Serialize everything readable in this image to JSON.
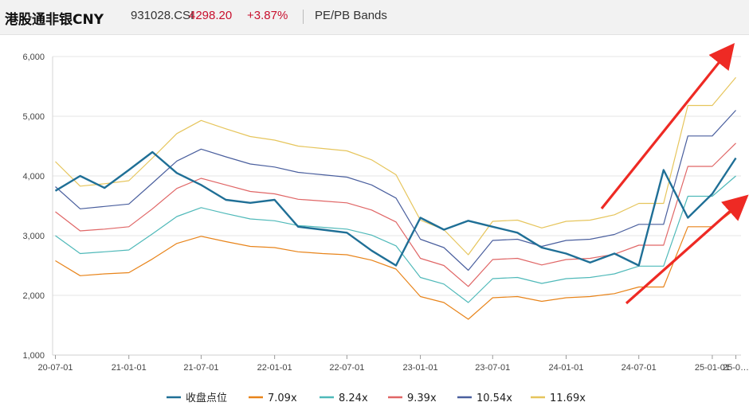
{
  "header": {
    "name": "港股通非银CNY",
    "code": "931028.CSI",
    "price": "4298.20",
    "change": "+3.87%",
    "chart_label": "PE/PB Bands"
  },
  "chart_data": {
    "type": "line",
    "title": "",
    "xlabel": "",
    "ylabel": "",
    "ylim": [
      1000,
      6000
    ],
    "xlim": [
      "2020-06-24",
      "2025-03-14"
    ],
    "yticks": [
      "1,000",
      "2,000",
      "3,000",
      "4,000",
      "5,000",
      "6,000"
    ],
    "xticks": [
      {
        "label": "20-07-01",
        "date": "2020-07-01"
      },
      {
        "label": "21-01-01",
        "date": "2021-01-01"
      },
      {
        "label": "21-07-01",
        "date": "2021-07-01"
      },
      {
        "label": "22-01-01",
        "date": "2022-01-01"
      },
      {
        "label": "22-07-01",
        "date": "2022-07-01"
      },
      {
        "label": "23-01-01",
        "date": "2023-01-01"
      },
      {
        "label": "23-07-01",
        "date": "2023-07-01"
      },
      {
        "label": "24-01-01",
        "date": "2024-01-01"
      },
      {
        "label": "24-07-01",
        "date": "2024-07-01"
      },
      {
        "label": "25-01-01",
        "date": "2025-01-01"
      },
      {
        "label": "25-0…",
        "date": "2025-03-01"
      }
    ],
    "grid": "horizontal",
    "legend_position": "bottom",
    "dates": [
      "2020-07",
      "2020-09",
      "2020-11",
      "2021-01",
      "2021-03",
      "2021-05",
      "2021-07",
      "2021-09",
      "2021-11",
      "2022-01",
      "2022-03",
      "2022-05",
      "2022-07",
      "2022-09",
      "2022-11",
      "2023-01",
      "2023-03",
      "2023-05",
      "2023-07",
      "2023-09",
      "2023-11",
      "2024-01",
      "2024-03",
      "2024-05",
      "2024-07",
      "2024-09",
      "2024-11",
      "2025-01",
      "2025-03"
    ],
    "series": [
      {
        "name": "收盘点位",
        "color": "#1f6f96",
        "width": 2.4,
        "values": [
          3750,
          4000,
          3800,
          4100,
          4400,
          4050,
          3850,
          3600,
          3550,
          3600,
          3150,
          3100,
          3050,
          2750,
          2500,
          3300,
          3100,
          3250,
          3150,
          3050,
          2800,
          2700,
          2550,
          2700,
          2500,
          4100,
          3300,
          3700,
          4300
        ]
      },
      {
        "name": "7.09x",
        "color": "#e8841a",
        "width": 1.2,
        "values": [
          2580,
          2330,
          2360,
          2380,
          2610,
          2870,
          2990,
          2900,
          2820,
          2800,
          2730,
          2700,
          2680,
          2590,
          2440,
          1980,
          1880,
          1600,
          1960,
          1980,
          1900,
          1960,
          1980,
          2030,
          2140,
          2140,
          3150,
          3150,
          3450
        ]
      },
      {
        "name": "8.24x",
        "color": "#4fb9b9",
        "width": 1.2,
        "values": [
          3000,
          2700,
          2730,
          2760,
          3030,
          3320,
          3470,
          3370,
          3280,
          3250,
          3170,
          3140,
          3110,
          3010,
          2830,
          2300,
          2190,
          1880,
          2280,
          2300,
          2200,
          2280,
          2300,
          2360,
          2490,
          2490,
          3660,
          3660,
          4000
        ]
      },
      {
        "name": "9.39x",
        "color": "#e06666",
        "width": 1.2,
        "values": [
          3400,
          3080,
          3110,
          3150,
          3450,
          3790,
          3960,
          3850,
          3740,
          3700,
          3610,
          3580,
          3550,
          3430,
          3230,
          2620,
          2500,
          2150,
          2600,
          2620,
          2510,
          2600,
          2620,
          2690,
          2840,
          2840,
          4160,
          4160,
          4550
        ]
      },
      {
        "name": "10.54x",
        "color": "#4a5f9e",
        "width": 1.2,
        "values": [
          3820,
          3450,
          3490,
          3530,
          3880,
          4250,
          4450,
          4320,
          4200,
          4150,
          4060,
          4020,
          3980,
          3850,
          3630,
          2940,
          2800,
          2420,
          2920,
          2940,
          2820,
          2920,
          2940,
          3020,
          3190,
          3190,
          4670,
          4670,
          5100
        ]
      },
      {
        "name": "11.69x",
        "color": "#e6c55c",
        "width": 1.2,
        "values": [
          4240,
          3830,
          3870,
          3920,
          4300,
          4710,
          4930,
          4790,
          4660,
          4600,
          4500,
          4460,
          4420,
          4270,
          4020,
          3260,
          3100,
          2680,
          3240,
          3260,
          3130,
          3240,
          3260,
          3350,
          3540,
          3540,
          5180,
          5180,
          5650
        ]
      }
    ],
    "annotations": [
      {
        "type": "arrow",
        "color": "#ee2a24"
      },
      {
        "type": "arrow",
        "color": "#ee2a24"
      }
    ]
  }
}
